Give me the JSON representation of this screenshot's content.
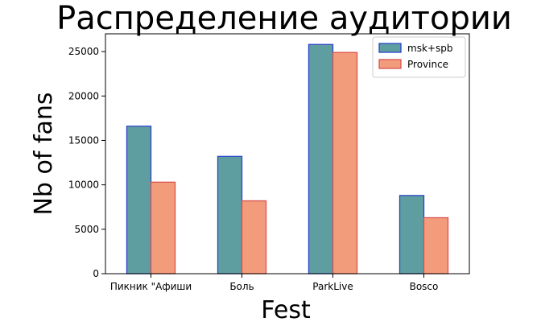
{
  "chart_data": {
    "type": "bar",
    "title": "Распределение аудитории",
    "xlabel": "Fest",
    "ylabel": "Nb of fans",
    "categories": [
      "Пикник \"Афиши",
      "Боль",
      "ParkLive",
      "Bosco"
    ],
    "series": [
      {
        "name": "msk+spb",
        "values": [
          16600,
          13200,
          25800,
          8800
        ],
        "color": "#5f9ea0",
        "edge": "#2b45c8"
      },
      {
        "name": "Province",
        "values": [
          10300,
          8200,
          24900,
          6300
        ],
        "color": "#f39c7b",
        "edge": "#d9534f"
      }
    ],
    "ylim": [
      0,
      27000
    ],
    "yticks": [
      0,
      5000,
      10000,
      15000,
      20000,
      25000
    ],
    "ytick_labels": [
      "0",
      "5000",
      "10000",
      "15000",
      "20000",
      "25000"
    ],
    "grid": false,
    "legend_position": "top-right"
  }
}
